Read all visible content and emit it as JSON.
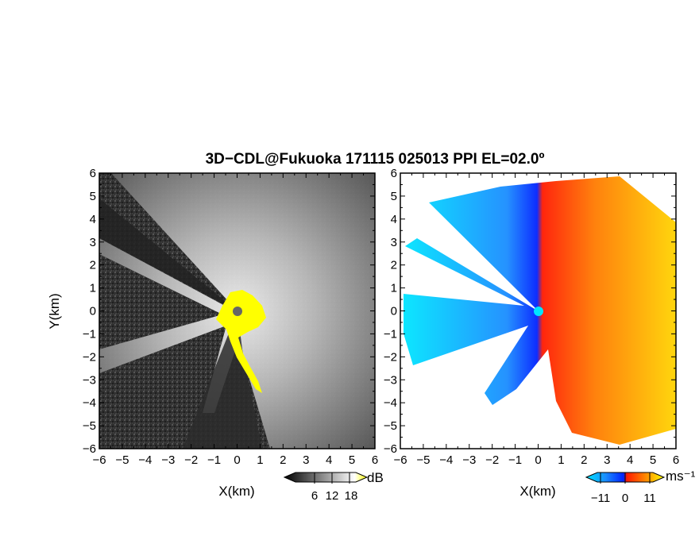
{
  "figure": {
    "title": "3D−CDL@Fukuoka 171115 025013 PPI EL=02.0º"
  },
  "panels": [
    {
      "name": "reflectivity",
      "xlabel": "X(km)",
      "ylabel": "Y(km)",
      "colorbar": {
        "unit": "dB",
        "ticks": [
          "6",
          "12",
          "18"
        ],
        "colors": [
          "#000000",
          "#ffffff",
          "#ffff00"
        ]
      }
    },
    {
      "name": "doppler-velocity",
      "xlabel": "X(km)",
      "ylabel": "",
      "colorbar": {
        "unit": "ms⁻¹",
        "ticks": [
          "−11",
          "0",
          "11"
        ],
        "colors": [
          "#00e5ff",
          "#0022ff",
          "#ff0000",
          "#ffb000",
          "#ffff00"
        ]
      }
    }
  ],
  "axis_ticks": [
    "−6",
    "−5",
    "−4",
    "−3",
    "−2",
    "−1",
    "0",
    "1",
    "2",
    "3",
    "4",
    "5",
    "6"
  ],
  "chart_data": [
    {
      "type": "heatmap",
      "title": "3D−CDL@Fukuoka 171115 025013 PPI EL=02.0º",
      "xlabel": "X(km)",
      "ylabel": "Y(km)",
      "xlim": [
        -6,
        6
      ],
      "ylim": [
        -6,
        6
      ],
      "colorbar_unit": "dB",
      "colorbar_ticks": [
        6,
        12,
        18
      ]
    },
    {
      "type": "heatmap",
      "xlabel": "X(km)",
      "ylabel": "",
      "xlim": [
        -6,
        6
      ],
      "ylim": [
        -6,
        6
      ],
      "colorbar_unit": "ms⁻¹",
      "colorbar_ticks": [
        -11,
        0,
        11
      ]
    }
  ]
}
